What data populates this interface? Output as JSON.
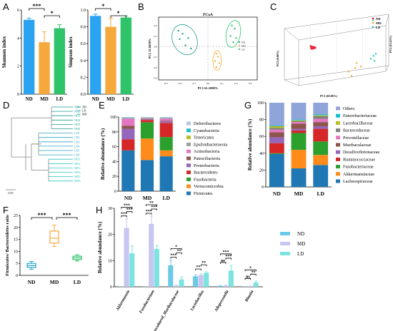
{
  "panels": {
    "A": "A",
    "B": "B",
    "C": "C",
    "D": "D",
    "E": "E",
    "F": "F",
    "G": "G",
    "H": "H"
  },
  "groups": [
    "ND",
    "MD",
    "LD"
  ],
  "colors": {
    "ND": "#2aa3f0",
    "MD": "#f5a93d",
    "LD": "#2fc36a",
    "teal": "#2cc5bf",
    "red": "#e8253a",
    "h_ND": "#6cc9e8",
    "h_MD": "#c7c6f1",
    "h_LD": "#7de3e0"
  },
  "chart_data": [
    {
      "panel": "A-left",
      "type": "bar",
      "ylabel": "Shannon index",
      "categories": [
        "ND",
        "MD",
        "LD"
      ],
      "values": [
        5.3,
        3.7,
        4.7
      ],
      "errors": [
        0.12,
        0.75,
        0.25
      ],
      "ylim": [
        0,
        6
      ],
      "yticks": [
        "0",
        "2",
        "4",
        "6"
      ],
      "significance": [
        {
          "pair": [
            "ND",
            "MD"
          ],
          "label": "***"
        },
        {
          "pair": [
            "MD",
            "LD"
          ],
          "label": "*"
        }
      ]
    },
    {
      "panel": "A-right",
      "type": "bar",
      "ylabel": "Simpson index",
      "categories": [
        "ND",
        "MD",
        "LD"
      ],
      "values": [
        0.93,
        0.8,
        0.91
      ],
      "errors": [
        0.02,
        0.1,
        0.02
      ],
      "ylim": [
        0,
        1
      ],
      "yticks": [
        "0.0",
        "0.2",
        "0.4",
        "0.6",
        "0.8",
        "1.0"
      ],
      "significance": [
        {
          "pair": [
            "ND",
            "MD"
          ],
          "label": "*"
        },
        {
          "pair": [
            "MD",
            "LD"
          ],
          "label": "*"
        }
      ]
    },
    {
      "panel": "B",
      "type": "scatter",
      "title": "PCoA",
      "xlabel": "PC1 61.1098%",
      "ylabel": "PC2 12.0438%",
      "xticks": [
        "-0.3",
        "-0.2",
        "-0.1",
        "0.0",
        "0.1",
        "0.2",
        "0.3"
      ],
      "yticks": [
        "-0.3",
        "-0.2",
        "-0.1",
        "0.0",
        "0.1",
        "0.2"
      ],
      "xlim": [
        -0.35,
        0.35
      ],
      "ylim": [
        -0.32,
        0.28
      ],
      "series": [
        {
          "name": "ND",
          "points": [
            [
              -0.21,
              0.15
            ],
            [
              -0.18,
              0.12
            ],
            [
              -0.2,
              0.07
            ],
            [
              -0.14,
              0.08
            ],
            [
              -0.16,
              0.01
            ],
            [
              -0.12,
              -0.02
            ]
          ]
        },
        {
          "name": "MD",
          "points": [
            [
              0.06,
              -0.07
            ],
            [
              0.07,
              -0.1
            ],
            [
              0.05,
              -0.14
            ],
            [
              0.08,
              -0.16
            ],
            [
              0.06,
              -0.2
            ]
          ]
        },
        {
          "name": "LD",
          "points": [
            [
              0.17,
              0.2
            ],
            [
              0.19,
              0.17
            ],
            [
              0.16,
              0.1
            ],
            [
              0.2,
              0.08
            ],
            [
              0.18,
              0.04
            ]
          ]
        }
      ]
    },
    {
      "panel": "C",
      "type": "scatter",
      "xlabel": "PC1 (65.96%)",
      "ylabel": "PC3 (6.06%)",
      "zlabel": "PC2 (13.14%)",
      "series": [
        {
          "name": "ND"
        },
        {
          "name": "MD"
        },
        {
          "name": "LD"
        }
      ]
    },
    {
      "panel": "D",
      "type": "dendrogram",
      "leaves": [
        "ND1",
        "ND2",
        "ND3",
        "ND4",
        "ND5",
        "ND6",
        "LD1",
        "LD2",
        "LD3",
        "LD4",
        "LD5",
        "LD6",
        "MD1",
        "MD2",
        "MD3",
        "MD4",
        "MD5",
        "MD6"
      ],
      "legend": [
        "ND",
        "LD",
        "MD"
      ],
      "scale": "0.05"
    },
    {
      "panel": "E",
      "type": "bar",
      "stacked": true,
      "ylabel": "Relative abundance (%)",
      "categories": [
        "ND",
        "MD",
        "LD"
      ],
      "ylim": [
        0,
        100
      ],
      "yticks": [
        "0",
        "20",
        "40",
        "60",
        "80",
        "100"
      ],
      "series": [
        {
          "name": "Firmicutes",
          "color": "#1f77b4",
          "values": [
            55,
            42,
            47
          ]
        },
        {
          "name": "Verrucomicrobia",
          "color": "#ff8c1a",
          "values": [
            0,
            29,
            8
          ]
        },
        {
          "name": "Fusobacteria",
          "color": "#2ca02c",
          "values": [
            0,
            22,
            18
          ]
        },
        {
          "name": "Bacteroidetes",
          "color": "#d62728",
          "values": [
            15,
            3,
            19
          ]
        },
        {
          "name": "Proteobacteria",
          "color": "#9467bd",
          "values": [
            14,
            1,
            2
          ]
        },
        {
          "name": "Patescibacteria",
          "color": "#8c564b",
          "values": [
            4,
            0.5,
            1
          ]
        },
        {
          "name": "Actinobacteria",
          "color": "#e377c2",
          "values": [
            10,
            0.5,
            3
          ]
        },
        {
          "name": "Epsilonbacteraeota",
          "color": "#9e9e9e",
          "values": [
            0.3,
            0.5,
            0.3
          ]
        },
        {
          "name": "Tenericutes",
          "color": "#bcbd22",
          "values": [
            0.2,
            0.4,
            0.3
          ]
        },
        {
          "name": "Cyanobacteria",
          "color": "#17becf",
          "values": [
            0.5,
            0.1,
            0.4
          ]
        },
        {
          "name": "Deferribacteres",
          "color": "#aec7e8",
          "values": [
            1,
            1,
            1
          ]
        }
      ]
    },
    {
      "panel": "F",
      "type": "box",
      "ylabel": "Firmicutes/ Bacteroidetes ratio",
      "categories": [
        "ND",
        "MD",
        "LD"
      ],
      "ylim": [
        0,
        25
      ],
      "yticks": [
        "0",
        "5",
        "10",
        "15",
        "20",
        "25"
      ],
      "boxes": [
        {
          "min": 2.5,
          "q1": 3.3,
          "median": 4.1,
          "q3": 5.0,
          "max": 5.8
        },
        {
          "min": 12,
          "q1": 13.5,
          "median": 15.5,
          "q3": 18.5,
          "max": 21
        },
        {
          "min": 6,
          "q1": 6.6,
          "median": 7.3,
          "q3": 8.0,
          "max": 8.6
        }
      ],
      "significance": [
        {
          "pair": [
            "ND",
            "MD"
          ],
          "label": "***"
        },
        {
          "pair": [
            "MD",
            "LD"
          ],
          "label": "***"
        }
      ]
    },
    {
      "panel": "G",
      "type": "bar",
      "stacked": true,
      "ylabel": "Relative abundance (%)",
      "categories": [
        "ND",
        "MD",
        "LD"
      ],
      "ylim": [
        0,
        100
      ],
      "yticks": [
        "0",
        "20",
        "40",
        "60",
        "80",
        "100"
      ],
      "series": [
        {
          "name": "Lachnospiraceae",
          "color": "#1f77b4",
          "values": [
            39,
            22,
            26
          ]
        },
        {
          "name": "Akkermansiaceae",
          "color": "#ff8c1a",
          "values": [
            0,
            22,
            12
          ]
        },
        {
          "name": "Fusobacteriaceae",
          "color": "#2ca02c",
          "values": [
            1,
            20,
            16
          ]
        },
        {
          "name": "Ruminococcaceae",
          "color": "#d62728",
          "values": [
            12,
            3,
            15
          ]
        },
        {
          "name": "Desulfovibrionaceae",
          "color": "#9467bd",
          "values": [
            7,
            2,
            3
          ]
        },
        {
          "name": "Muribaculaceae",
          "color": "#8c564b",
          "values": [
            6,
            6,
            5
          ]
        },
        {
          "name": "Prevotellaceae",
          "color": "#e377c2",
          "values": [
            3,
            2,
            4
          ]
        },
        {
          "name": "Bacteroidaceae",
          "color": "#7f7f7f",
          "values": [
            2,
            1,
            3
          ]
        },
        {
          "name": "Lactobacillaceae",
          "color": "#bcbd22",
          "values": [
            2,
            1,
            1
          ]
        },
        {
          "name": "Enterobacteriaceae",
          "color": "#17becf",
          "values": [
            1,
            1,
            1
          ]
        },
        {
          "name": "Others",
          "color": "#8fa4d8",
          "values": [
            27,
            20,
            14
          ]
        }
      ]
    },
    {
      "panel": "H",
      "type": "bar",
      "ylabel": "Relative abundance (%)",
      "categories": [
        "Akkermansia",
        "Fusobacterium",
        "uncultured_Muribaculaceae",
        "Lactobacillus",
        "Alloprevotella",
        "Blautia"
      ],
      "ylim": [
        0,
        30
      ],
      "yticks": [
        "0",
        "10",
        "20",
        "30"
      ],
      "series": [
        {
          "name": "ND",
          "values": [
            0.1,
            0.1,
            8.2,
            4.0,
            0.3,
            0.1
          ],
          "errors": [
            0,
            0,
            2.0,
            0.6,
            0.1,
            0
          ]
        },
        {
          "name": "MD",
          "values": [
            22.5,
            24.0,
            0.4,
            4.5,
            0.4,
            0.2
          ],
          "errors": [
            3.5,
            3.0,
            0.2,
            0.5,
            0.2,
            0.1
          ]
        },
        {
          "name": "LD",
          "values": [
            12.8,
            14.5,
            2.8,
            5.3,
            6.2,
            1.6
          ],
          "errors": [
            2.8,
            1.2,
            1.0,
            0.4,
            2.0,
            0.5
          ]
        }
      ],
      "significance": [
        [
          "***",
          "***",
          "***"
        ],
        [
          "***",
          "***",
          "**"
        ],
        [
          "***",
          "**",
          "*"
        ],
        [
          "**",
          "**",
          ""
        ],
        [
          "ns",
          "***",
          "***"
        ],
        [
          "ns",
          "**",
          "*"
        ]
      ]
    }
  ]
}
